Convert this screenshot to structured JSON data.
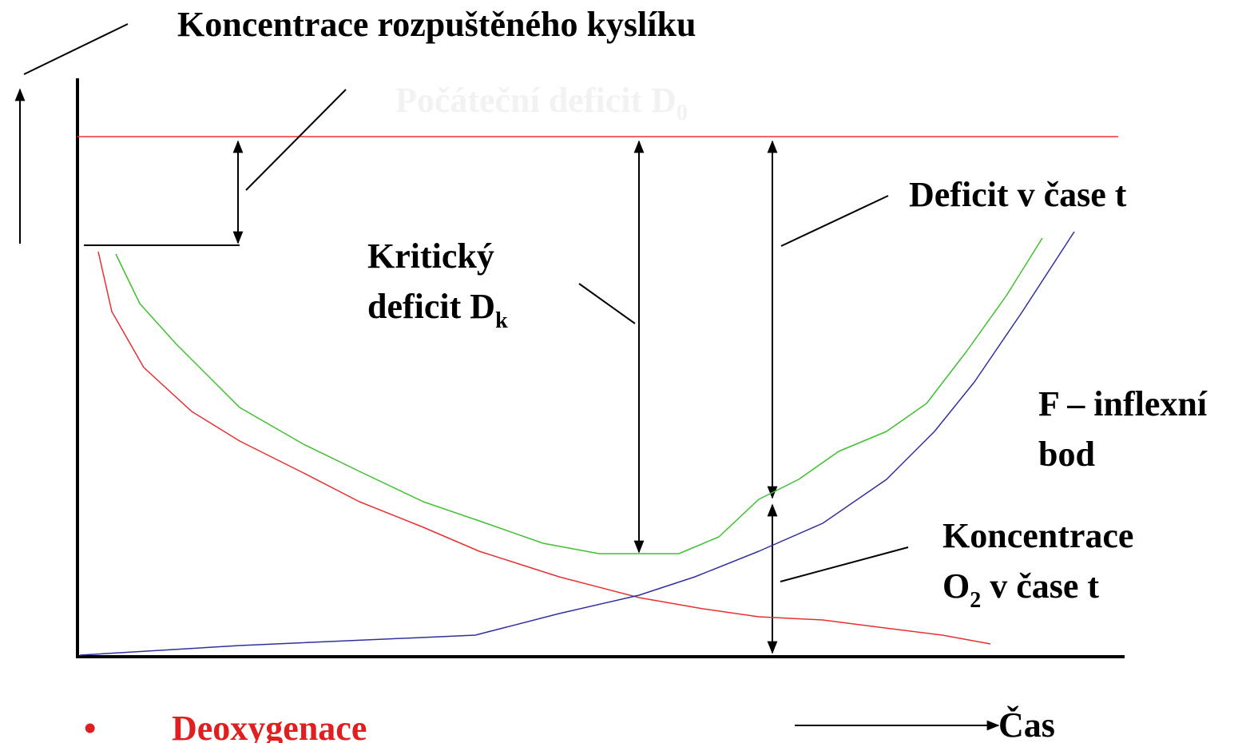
{
  "title": "Koncentrace rozpuštěného kyslíku",
  "initial_deficit": {
    "text": "Počáteční deficit D",
    "sub": "0"
  },
  "critical_deficit": {
    "line1": "Kritický",
    "line2": "deficit D",
    "sub": "k"
  },
  "deficit_t": "Deficit v čase t",
  "inflection": {
    "line1": "F – inflexní",
    "line2": "bod"
  },
  "concentration_t": {
    "line1": "Koncentrace",
    "pre": "O",
    "sub": "2",
    "post": " v čase t"
  },
  "bullet": "•",
  "deoxygenation": "Deoxygenace",
  "time_axis": "Čas"
}
